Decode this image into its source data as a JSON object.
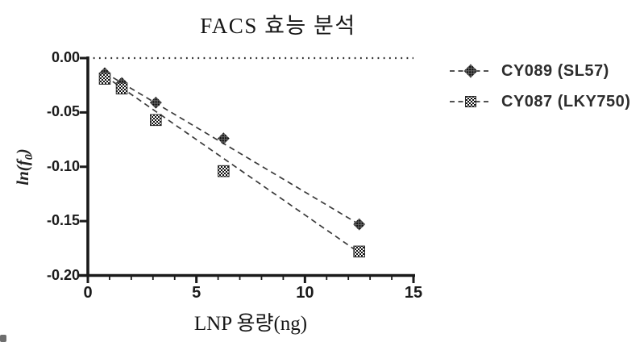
{
  "figure_caption": "FACS potency analysis scatter plot",
  "colors": {
    "ink": "#1a1a1a",
    "text": "#1b1b1b",
    "dash_line": "#3a3a3a",
    "reference_line": "#2b2b2b",
    "background": "#ffffff"
  },
  "chart_data": {
    "type": "scatter",
    "title": "FACS 효능 분석",
    "xlabel": "LNP 용량(ng)",
    "ylabel": "ln(f0)",
    "ylabel_parts": {
      "pre": "ln(f",
      "sub": "0",
      "post": ")"
    },
    "xlim": [
      0,
      15
    ],
    "ylim": [
      -0.2,
      0
    ],
    "x_major_ticks": [
      0,
      5,
      10,
      15
    ],
    "x_tick_labels": [
      "0",
      "5",
      "10",
      "15"
    ],
    "x_minor_tick_step": 1,
    "y_major_ticks": [
      0,
      -0.05,
      -0.1,
      -0.15,
      -0.2
    ],
    "y_tick_labels": [
      "0.00",
      "-0.05",
      "-0.10",
      "-0.15",
      "-0.20"
    ],
    "grid": false,
    "legend_position": "right",
    "reference_line": {
      "y": 0,
      "style": "dotted"
    },
    "series": [
      {
        "name": "CY089 (SL57)",
        "marker": "diamond",
        "line_style": "dashed",
        "x": [
          0.78,
          1.56,
          3.13,
          6.25,
          12.5
        ],
        "y": [
          -0.014,
          -0.023,
          -0.041,
          -0.074,
          -0.153
        ],
        "fit_line": {
          "x1": 0.78,
          "y1": -0.0135,
          "x2": 12.5,
          "y2": -0.153
        }
      },
      {
        "name": "CY087 (LKY750)",
        "marker": "square",
        "line_style": "dashed",
        "x": [
          0.78,
          1.56,
          3.13,
          6.25,
          12.5
        ],
        "y": [
          -0.019,
          -0.028,
          -0.057,
          -0.104,
          -0.178
        ],
        "fit_line": {
          "x1": 0.78,
          "y1": -0.0165,
          "x2": 12.5,
          "y2": -0.179
        }
      }
    ]
  }
}
